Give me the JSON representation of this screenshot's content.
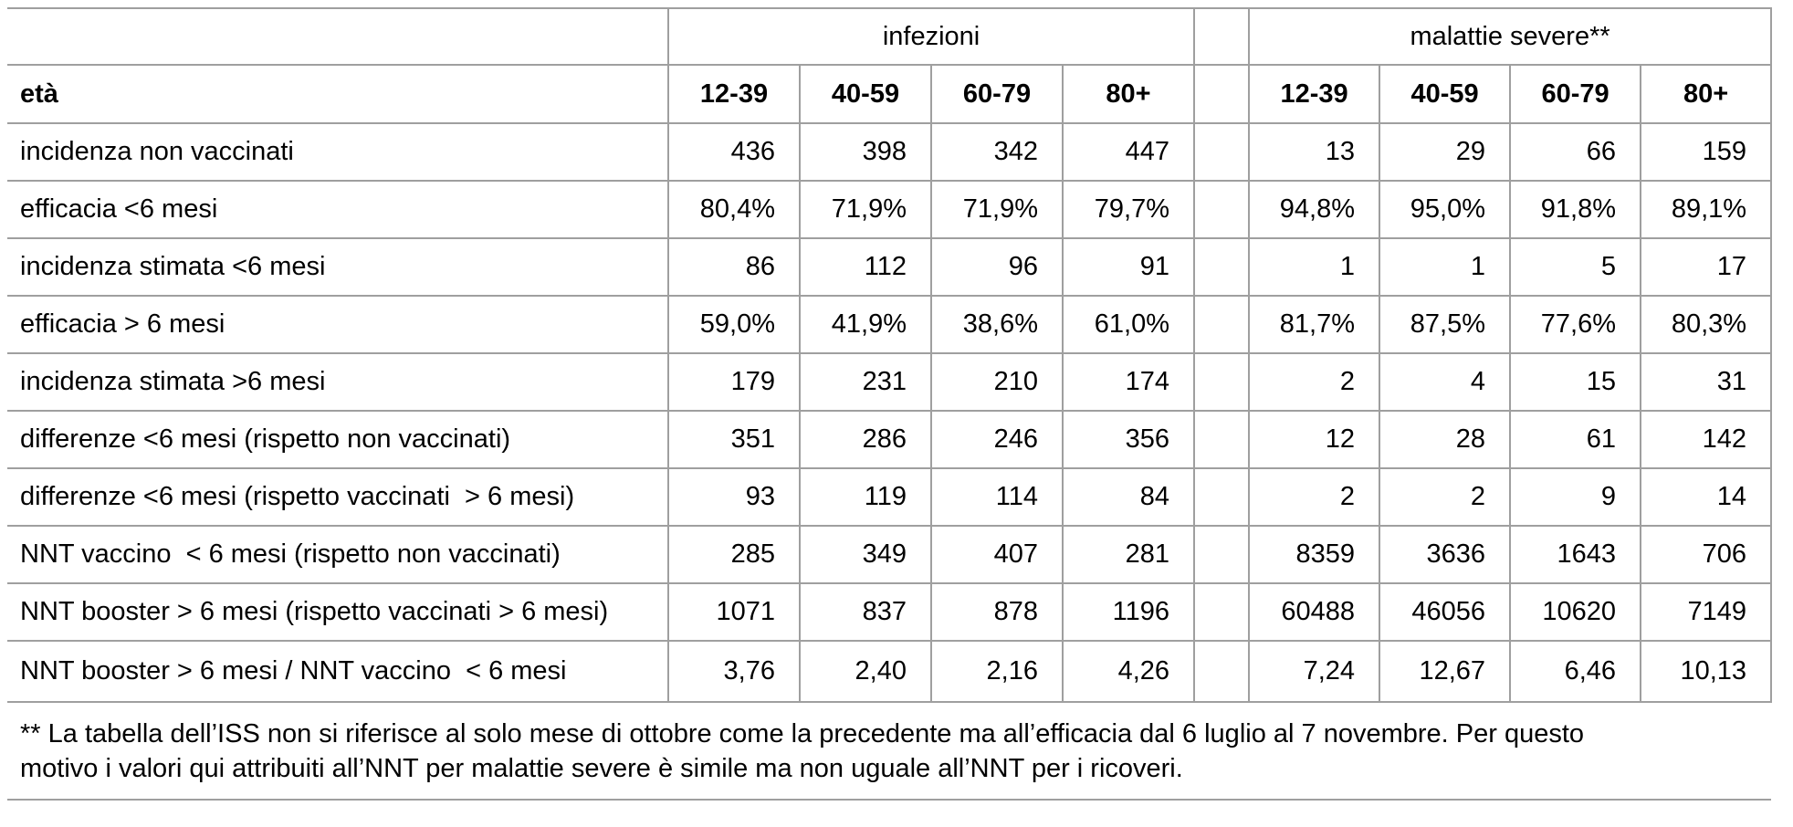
{
  "table": {
    "col_groups": [
      {
        "label": "infezioni"
      },
      {
        "label": "malattie severe**"
      }
    ],
    "age_header_label": "età",
    "age_columns": [
      "12-39",
      "40-59",
      "60-79",
      "80+"
    ],
    "rows": [
      {
        "label": "incidenza non vaccinati",
        "infezioni": [
          "436",
          "398",
          "342",
          "447"
        ],
        "malattie_severe": [
          "13",
          "29",
          "66",
          "159"
        ]
      },
      {
        "label": "efficacia <6 mesi",
        "infezioni": [
          "80,4%",
          "71,9%",
          "71,9%",
          "79,7%"
        ],
        "malattie_severe": [
          "94,8%",
          "95,0%",
          "91,8%",
          "89,1%"
        ]
      },
      {
        "label": "incidenza stimata <6 mesi",
        "infezioni": [
          "86",
          "112",
          "96",
          "91"
        ],
        "malattie_severe": [
          "1",
          "1",
          "5",
          "17"
        ]
      },
      {
        "label": "efficacia > 6 mesi",
        "infezioni": [
          "59,0%",
          "41,9%",
          "38,6%",
          "61,0%"
        ],
        "malattie_severe": [
          "81,7%",
          "87,5%",
          "77,6%",
          "80,3%"
        ]
      },
      {
        "label": "incidenza stimata >6 mesi",
        "infezioni": [
          "179",
          "231",
          "210",
          "174"
        ],
        "malattie_severe": [
          "2",
          "4",
          "15",
          "31"
        ]
      },
      {
        "label": "differenze <6 mesi (rispetto non vaccinati)",
        "infezioni": [
          "351",
          "286",
          "246",
          "356"
        ],
        "malattie_severe": [
          "12",
          "28",
          "61",
          "142"
        ]
      },
      {
        "label": "differenze <6 mesi (rispetto vaccinati  > 6 mesi)",
        "infezioni": [
          "93",
          "119",
          "114",
          "84"
        ],
        "malattie_severe": [
          "2",
          "2",
          "9",
          "14"
        ]
      },
      {
        "label": "NNT vaccino  < 6 mesi (rispetto non vaccinati)",
        "infezioni": [
          "285",
          "349",
          "407",
          "281"
        ],
        "malattie_severe": [
          "8359",
          "3636",
          "1643",
          "706"
        ]
      },
      {
        "label": "NNT booster > 6 mesi (rispetto vaccinati > 6 mesi)",
        "infezioni": [
          "1071",
          "837",
          "878",
          "1196"
        ],
        "malattie_severe": [
          "60488",
          "46056",
          "10620",
          "7149"
        ]
      },
      {
        "label": "NNT booster > 6 mesi / NNT vaccino  < 6 mesi",
        "infezioni": [
          "3,76",
          "2,40",
          "2,16",
          "4,26"
        ],
        "malattie_severe": [
          "7,24",
          "12,67",
          "6,46",
          "10,13"
        ]
      }
    ],
    "footnote": {
      "line1": "** La tabella dell’ISS non si riferisce al solo mese di ottobre come la precedente ma all’efficacia dal 6 luglio al 7 novembre. Per questo",
      "line2": "motivo i valori qui attribuiti all’NNT per malattie severe è simile ma non uguale all’NNT per i ricoveri."
    },
    "grid_color": "#9f9f9f",
    "text_color": "#000000"
  }
}
